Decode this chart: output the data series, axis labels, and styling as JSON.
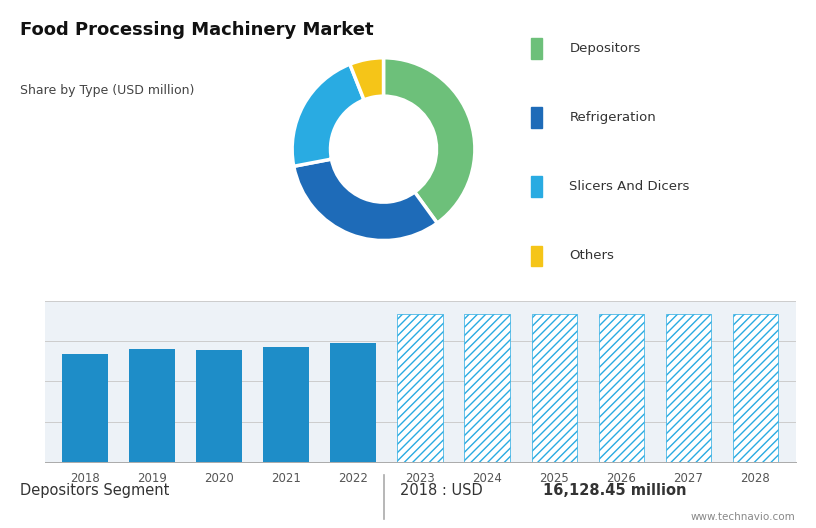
{
  "title": "Food Processing Machinery Market",
  "subtitle": "Share by Type (USD million)",
  "pie_labels": [
    "Depositors",
    "Refrigeration",
    "Slicers And Dicers",
    "Others"
  ],
  "pie_values": [
    40,
    32,
    22,
    6
  ],
  "pie_colors": [
    "#6dc07a",
    "#1e6bb8",
    "#29abe2",
    "#f5c518"
  ],
  "bar_years": [
    2018,
    2019,
    2020,
    2021,
    2022,
    2023,
    2024,
    2025,
    2026,
    2027,
    2028
  ],
  "bar_values": [
    16128,
    16900,
    16700,
    17200,
    17700,
    22000,
    22000,
    22000,
    22000,
    22000,
    22000
  ],
  "bar_color_solid": "#1e8dc8",
  "bar_color_hatch": "#29abe2",
  "top_bg_color": "#c8d8e8",
  "bottom_bg_color": "#edf2f7",
  "footer_bg_color": "#e8edf2",
  "footer_left": "Depositors Segment",
  "footer_right_prefix": "2018 : USD ",
  "footer_right_value": "16,128.45 million",
  "footer_website": "www.technavio.com",
  "figsize": [
    8.16,
    5.28
  ],
  "dpi": 100
}
